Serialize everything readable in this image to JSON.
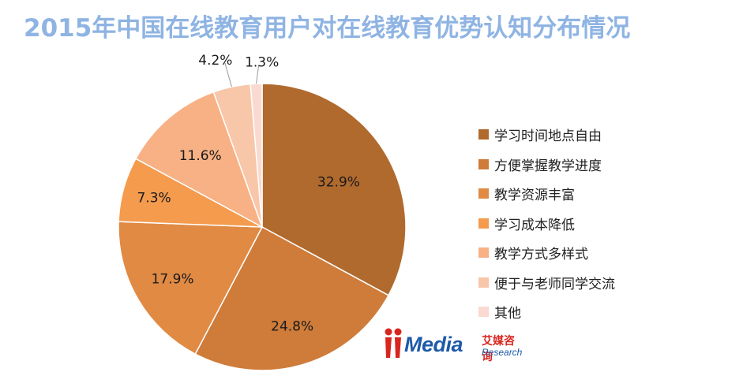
{
  "chart_data": {
    "type": "pie",
    "title": "2015年中国在线教育用户对在线教育优势认知分布情况",
    "categories": [
      "学习时间地点自由",
      "方便掌握教学进度",
      "教学资源丰富",
      "学习成本降低",
      "教学方式多样式",
      "便于与老师同学交流",
      "其他"
    ],
    "values": [
      32.9,
      24.8,
      17.9,
      7.3,
      11.6,
      4.2,
      1.3
    ],
    "data_labels": [
      "32.9%",
      "24.8%",
      "17.9%",
      "7.3%",
      "11.6%",
      "4.2%",
      "1.3%"
    ],
    "colors": [
      "#b06a2e",
      "#cf7c3a",
      "#e08a44",
      "#f49b4e",
      "#f7b184",
      "#f8c6a8",
      "#fadad0"
    ],
    "legend_position": "right"
  },
  "logo": {
    "text": "Media",
    "cn_text": "艾媒咨询",
    "sub_text": "Research"
  }
}
